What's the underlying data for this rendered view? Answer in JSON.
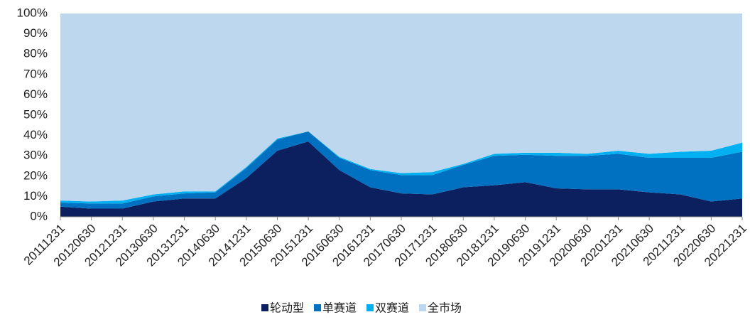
{
  "chart_data": {
    "type": "stacked_area_100",
    "categories": [
      "20111231",
      "20120630",
      "20121231",
      "20130630",
      "20131231",
      "20140630",
      "20141231",
      "20150630",
      "20151231",
      "20160630",
      "20161231",
      "20170630",
      "20171231",
      "20180630",
      "20181231",
      "20190630",
      "20191231",
      "20200630",
      "20201231",
      "20210630",
      "20211231",
      "20220630",
      "20221231"
    ],
    "series": [
      {
        "name": "轮动型",
        "color": "#0c1f5e",
        "values": [
          5,
          4,
          4,
          7.5,
          9,
          9,
          19,
          32.5,
          37,
          23,
          14.5,
          11.5,
          11,
          14.5,
          15.5,
          17,
          14,
          13.5,
          13.5,
          12,
          11,
          7.5,
          9
        ]
      },
      {
        "name": "单赛道",
        "color": "#0070c0",
        "values": [
          2,
          2.5,
          2.5,
          2.5,
          2.5,
          3,
          5,
          5.5,
          5,
          6,
          8.5,
          9,
          9.5,
          11,
          14.5,
          13.5,
          16,
          16.5,
          17.5,
          17,
          18,
          21.5,
          23
        ]
      },
      {
        "name": "双赛道",
        "color": "#00b0f0",
        "values": [
          1,
          1,
          1.5,
          1,
          1,
          0.5,
          0.5,
          0.5,
          0,
          0.5,
          0.5,
          1,
          1.5,
          0.5,
          1,
          1,
          1.5,
          1,
          1.5,
          2,
          3,
          3.5,
          4.5
        ]
      },
      {
        "name": "全市场",
        "color": "#bdd7ee",
        "values": [
          92,
          92.5,
          92,
          89,
          87.5,
          87.5,
          75.5,
          61.5,
          58,
          70.5,
          76.5,
          78.5,
          78,
          74,
          69,
          68.5,
          68.5,
          69,
          67.5,
          69,
          68,
          67.5,
          63.5
        ]
      }
    ],
    "ylim": [
      0,
      100
    ],
    "yticks": [
      {
        "value": 0,
        "label": "0%"
      },
      {
        "value": 10,
        "label": "10%"
      },
      {
        "value": 20,
        "label": "20%"
      },
      {
        "value": 30,
        "label": "30%"
      },
      {
        "value": 40,
        "label": "40%"
      },
      {
        "value": 50,
        "label": "50%"
      },
      {
        "value": 60,
        "label": "60%"
      },
      {
        "value": 70,
        "label": "70%"
      },
      {
        "value": 80,
        "label": "80%"
      },
      {
        "value": 90,
        "label": "90%"
      },
      {
        "value": 100,
        "label": "100%"
      }
    ],
    "grid": false,
    "legend": "bottom"
  }
}
